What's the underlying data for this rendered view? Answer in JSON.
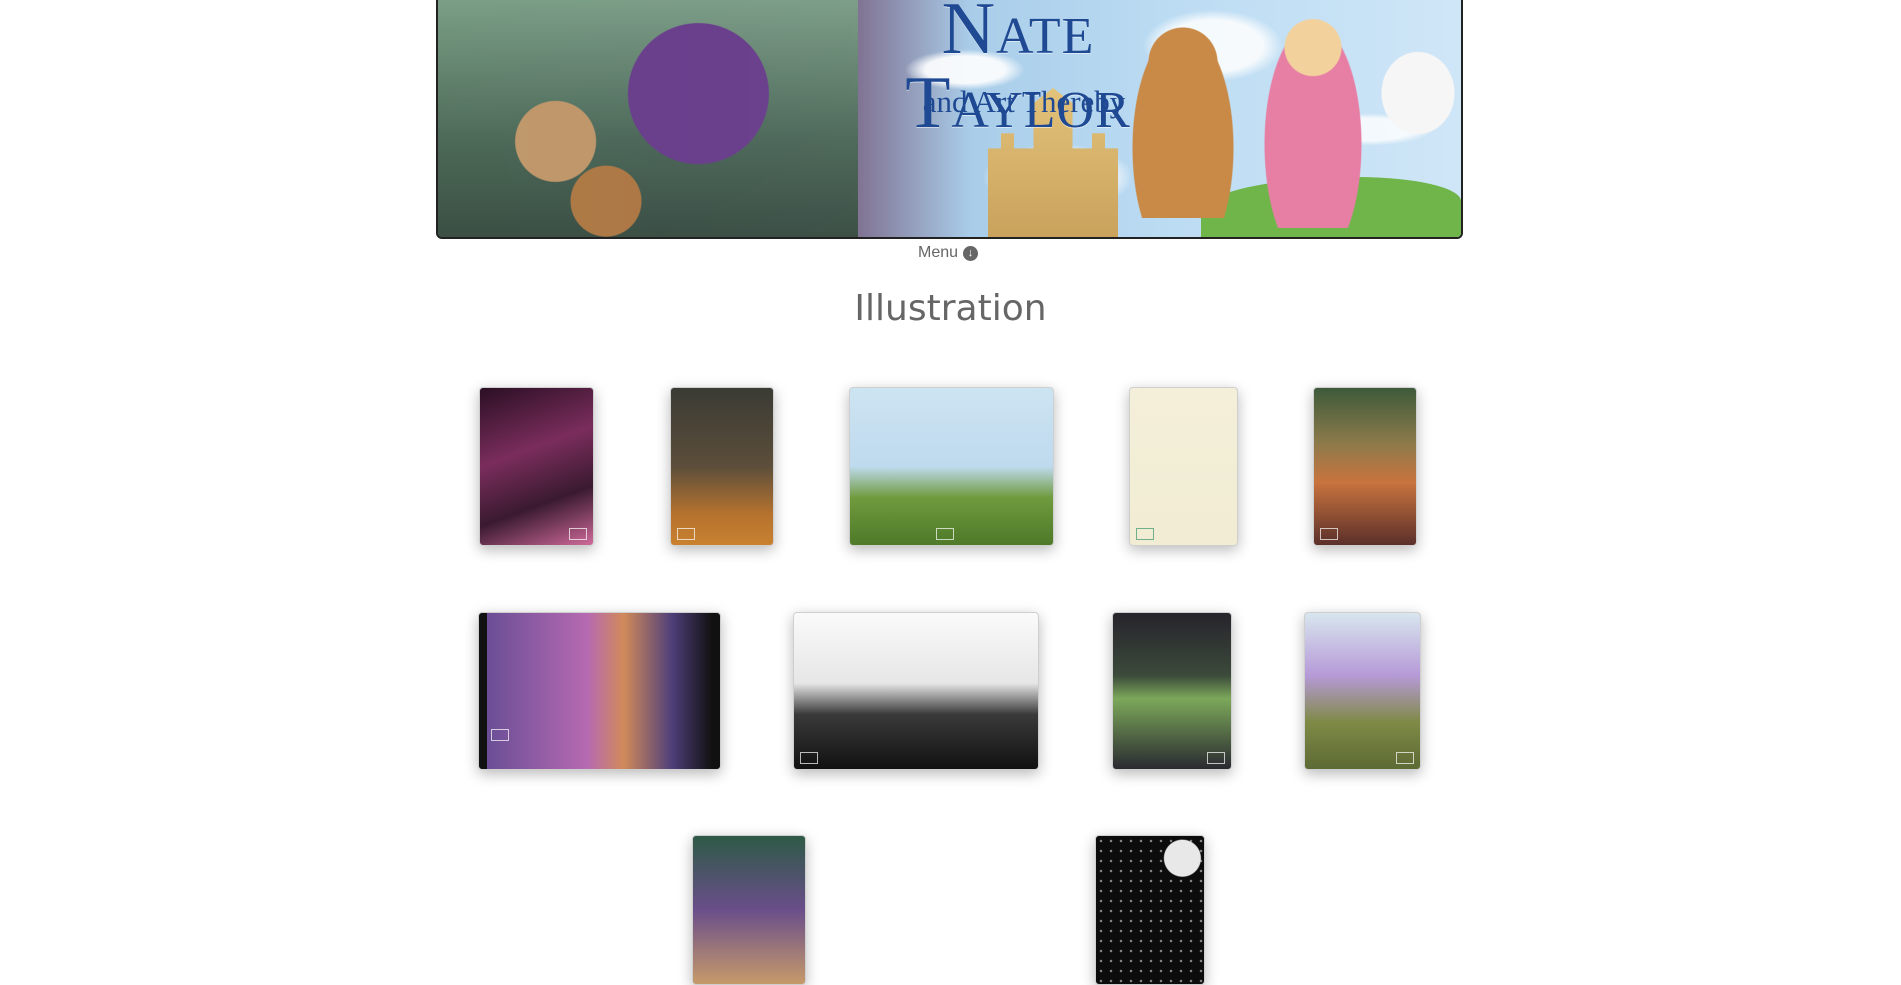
{
  "banner": {
    "title": "Nate Taylor",
    "subtitle": "and Art Thereby"
  },
  "nav": {
    "menu_label": "Menu",
    "menu_icon": "arrow-circle-down-icon"
  },
  "page": {
    "heading": "Illustration"
  },
  "gallery": {
    "thumbnails": [
      {
        "theme": "pink-neon-street"
      },
      {
        "theme": "autumn-forest"
      },
      {
        "theme": "picnic-meadow"
      },
      {
        "theme": "fairy-rocket"
      },
      {
        "theme": "sunset-trees"
      },
      {
        "theme": "night-campfire"
      },
      {
        "theme": "ink-cliff"
      },
      {
        "theme": "castle-doorway"
      },
      {
        "theme": "purple-dragon-jeep"
      },
      {
        "theme": "jungle-party"
      },
      {
        "theme": "moonlit-stars"
      }
    ]
  }
}
